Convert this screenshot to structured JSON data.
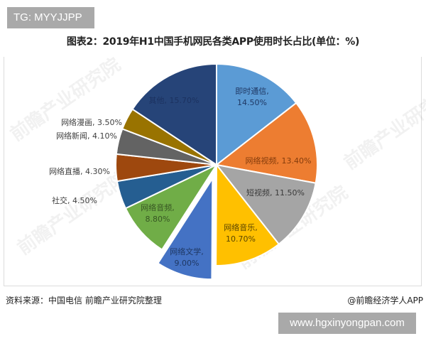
{
  "badges": {
    "top_left": "TG: MYYJJPP",
    "bottom_right": "www.hgxinyongpan.com"
  },
  "watermark_text": "前瞻产业研究院",
  "footer": {
    "source": "资料来源：中国电信 前瞻产业研究院整理",
    "credit": "@前瞻经济学人APP"
  },
  "colors": {
    "slice_border": "#ffffff",
    "frame_border": "#dcdcdc"
  },
  "chart_data": {
    "type": "pie",
    "title": "图表2：2019年H1中国手机网民各类APP使用时长占比(单位：%)",
    "unit": "%",
    "start_angle_deg": 0,
    "direction": "clockwise",
    "exploded": [
      "网络文学"
    ],
    "categories": [
      "即时通信",
      "网络视频",
      "短视频",
      "网络音乐",
      "网络文学",
      "网络音频",
      "社交",
      "网络直播",
      "网络新闻",
      "网络漫画",
      "其他"
    ],
    "values": [
      14.5,
      13.4,
      11.5,
      10.7,
      9.0,
      8.8,
      4.5,
      4.3,
      4.1,
      3.5,
      15.7
    ],
    "labels": [
      "即时通信,\n14.50%",
      "网络视频, 13.40%",
      "短视频, 11.50%",
      "网络音乐,\n10.70%",
      "网络文学,\n9.00%",
      "网络音频,\n8.80%",
      "社交, 4.50%",
      "网络直播, 4.30%",
      "网络新闻, 4.10%",
      "网络漫画, 3.50%",
      "其他, 15.70%"
    ],
    "colors": [
      "#5b9bd5",
      "#ed7d31",
      "#a5a5a5",
      "#ffc000",
      "#4472c4",
      "#70ad47",
      "#255e91",
      "#9e480e",
      "#636363",
      "#997300",
      "#264478"
    ],
    "label_colors": [
      "#1f3864",
      "#843c0c",
      "#3a3a3a",
      "#5a4500",
      "#1f3864",
      "#375623",
      "#404040",
      "#404040",
      "#404040",
      "#404040",
      "#1c3260"
    ],
    "legend": "none"
  }
}
